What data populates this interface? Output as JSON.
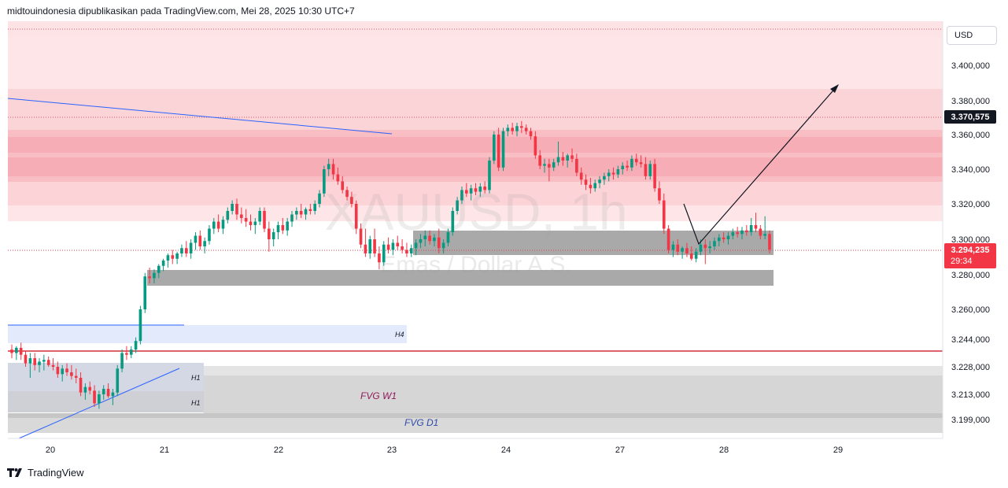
{
  "header": {
    "caption": "midtouindonesia dipublikasikan pada TradingView.com, Mei 28, 2025 10:30 UTC+7"
  },
  "footer": {
    "brand": "TradingView",
    "logo_icon": "tradingview-logo-icon"
  },
  "price_scale": {
    "currency": "USD",
    "current_price": "3.294,235",
    "countdown": "29:34",
    "marker_price": "3.370,575",
    "tick_values": [
      3400000,
      3380000,
      3360000,
      3340000,
      3320000,
      3300000,
      3280000,
      3260000,
      3244000,
      3228000,
      3213000,
      3199000
    ],
    "tick_labels": [
      "3.400,000",
      "3.380,000",
      "3.360,000",
      "3.340,000",
      "3.320,000",
      "3.300,000",
      "3.280,000",
      "3.260,000",
      "3.244,000",
      "3.228,000",
      "3.213,000",
      "3.199,000"
    ]
  },
  "time_scale": {
    "labels": [
      "20",
      "21",
      "22",
      "23",
      "24",
      "27",
      "28",
      "29"
    ]
  },
  "watermark": {
    "symbol": "XAUUSD, 1h",
    "description": "Emas / Dollar A.S."
  },
  "zone_labels": {
    "h4": "H4",
    "h1_top": "H1",
    "h1_bottom": "H1",
    "fvg_w1": "FVG W1",
    "fvg_d1": "FVG D1"
  },
  "colors": {
    "up": "#089981",
    "down": "#f23645",
    "price_marker": "#f23645",
    "pink_zone": "#fbd4d8",
    "gray_zone": "#8c8c8c",
    "blue_zone": "#dfe8fb",
    "fvg_label_w1": "#8e1a5a",
    "fvg_label_d1": "#2e4ba8"
  },
  "chart_data": {
    "type": "candlestick",
    "symbol": "XAUUSD",
    "timeframe": "1h",
    "ylim": [
      3190000,
      3420000
    ],
    "x_categories": [
      "20",
      "21",
      "22",
      "23",
      "24",
      "27",
      "28",
      "29"
    ],
    "candles": [
      [
        3238000,
        3241000,
        3233000,
        3236000
      ],
      [
        3236000,
        3240000,
        3232000,
        3239000
      ],
      [
        3239000,
        3242000,
        3232000,
        3235000
      ],
      [
        3235000,
        3237000,
        3228000,
        3230000
      ],
      [
        3230000,
        3236000,
        3222000,
        3233000
      ],
      [
        3233000,
        3236000,
        3226000,
        3229000
      ],
      [
        3229000,
        3233000,
        3225000,
        3231000
      ],
      [
        3231000,
        3235000,
        3226000,
        3232000
      ],
      [
        3232000,
        3234000,
        3228000,
        3229000
      ],
      [
        3229000,
        3233000,
        3226000,
        3228000
      ],
      [
        3228000,
        3231000,
        3222000,
        3224000
      ],
      [
        3224000,
        3229000,
        3220000,
        3227000
      ],
      [
        3227000,
        3230000,
        3223000,
        3225000
      ],
      [
        3225000,
        3229000,
        3221000,
        3223000
      ],
      [
        3223000,
        3227000,
        3219000,
        3222000
      ],
      [
        3222000,
        3225000,
        3212000,
        3214000
      ],
      [
        3214000,
        3219000,
        3210000,
        3217000
      ],
      [
        3217000,
        3220000,
        3213000,
        3215000
      ],
      [
        3215000,
        3218000,
        3206000,
        3208000
      ],
      [
        3208000,
        3215000,
        3205000,
        3213000
      ],
      [
        3213000,
        3218000,
        3210000,
        3216000
      ],
      [
        3216000,
        3219000,
        3211000,
        3212000
      ],
      [
        3212000,
        3216000,
        3207000,
        3214000
      ],
      [
        3214000,
        3229000,
        3212000,
        3227000
      ],
      [
        3227000,
        3238000,
        3225000,
        3236000
      ],
      [
        3236000,
        3240000,
        3232000,
        3235000
      ],
      [
        3235000,
        3240000,
        3233000,
        3238000
      ],
      [
        3238000,
        3245000,
        3236000,
        3243000
      ],
      [
        3243000,
        3262000,
        3241000,
        3260000
      ],
      [
        3260000,
        3281000,
        3258000,
        3279000
      ],
      [
        3279000,
        3284000,
        3275000,
        3278000
      ],
      [
        3278000,
        3283000,
        3275000,
        3281000
      ],
      [
        3281000,
        3286000,
        3278000,
        3285000
      ],
      [
        3285000,
        3289000,
        3282000,
        3288000
      ],
      [
        3288000,
        3292000,
        3284000,
        3291000
      ],
      [
        3291000,
        3294000,
        3286000,
        3289000
      ],
      [
        3289000,
        3293000,
        3286000,
        3292000
      ],
      [
        3292000,
        3297000,
        3290000,
        3295000
      ],
      [
        3295000,
        3299000,
        3290000,
        3292000
      ],
      [
        3292000,
        3300000,
        3289000,
        3298000
      ],
      [
        3298000,
        3304000,
        3294000,
        3302000
      ],
      [
        3302000,
        3305000,
        3294000,
        3296000
      ],
      [
        3296000,
        3301000,
        3292000,
        3299000
      ],
      [
        3299000,
        3308000,
        3297000,
        3306000
      ],
      [
        3306000,
        3312000,
        3303000,
        3310000
      ],
      [
        3310000,
        3314000,
        3304000,
        3306000
      ],
      [
        3306000,
        3313000,
        3303000,
        3311000
      ],
      [
        3311000,
        3318000,
        3309000,
        3316000
      ],
      [
        3316000,
        3322000,
        3314000,
        3320000
      ],
      [
        3320000,
        3323000,
        3311000,
        3314000
      ],
      [
        3314000,
        3318000,
        3309000,
        3312000
      ],
      [
        3312000,
        3317000,
        3307000,
        3310000
      ],
      [
        3310000,
        3314000,
        3305000,
        3308000
      ],
      [
        3308000,
        3312000,
        3303000,
        3310000
      ],
      [
        3310000,
        3318000,
        3308000,
        3316000
      ],
      [
        3316000,
        3318000,
        3304000,
        3306000
      ],
      [
        3306000,
        3310000,
        3293000,
        3300000
      ],
      [
        3300000,
        3306000,
        3296000,
        3304000
      ],
      [
        3304000,
        3310000,
        3300000,
        3308000
      ],
      [
        3308000,
        3312000,
        3303000,
        3305000
      ],
      [
        3305000,
        3312000,
        3302000,
        3310000
      ],
      [
        3310000,
        3316000,
        3307000,
        3314000
      ],
      [
        3314000,
        3318000,
        3311000,
        3316000
      ],
      [
        3316000,
        3320000,
        3312000,
        3314000
      ],
      [
        3314000,
        3318000,
        3311000,
        3317000
      ],
      [
        3317000,
        3320000,
        3314000,
        3316000
      ],
      [
        3316000,
        3322000,
        3314000,
        3320000
      ],
      [
        3320000,
        3328000,
        3318000,
        3326000
      ],
      [
        3326000,
        3342000,
        3324000,
        3340000
      ],
      [
        3340000,
        3346000,
        3336000,
        3343000
      ],
      [
        3343000,
        3346000,
        3334000,
        3337000
      ],
      [
        3337000,
        3341000,
        3331000,
        3333000
      ],
      [
        3333000,
        3336000,
        3326000,
        3328000
      ],
      [
        3328000,
        3330000,
        3322000,
        3324000
      ],
      [
        3324000,
        3327000,
        3318000,
        3320000
      ],
      [
        3320000,
        3322000,
        3303000,
        3306000
      ],
      [
        3306000,
        3309000,
        3295000,
        3297000
      ],
      [
        3297000,
        3306000,
        3290000,
        3292000
      ],
      [
        3292000,
        3302000,
        3289000,
        3300000
      ],
      [
        3300000,
        3306000,
        3290000,
        3292000
      ],
      [
        3292000,
        3296000,
        3283000,
        3287000
      ],
      [
        3287000,
        3299000,
        3285000,
        3297000
      ],
      [
        3297000,
        3301000,
        3292000,
        3294000
      ],
      [
        3294000,
        3300000,
        3291000,
        3298000
      ],
      [
        3298000,
        3302000,
        3294000,
        3296000
      ],
      [
        3296000,
        3300000,
        3292000,
        3294000
      ],
      [
        3294000,
        3298000,
        3290000,
        3292000
      ],
      [
        3292000,
        3297000,
        3290000,
        3295000
      ],
      [
        3295000,
        3300000,
        3291000,
        3298000
      ],
      [
        3298000,
        3303000,
        3295000,
        3300000
      ],
      [
        3300000,
        3305000,
        3296000,
        3302000
      ],
      [
        3302000,
        3305000,
        3297000,
        3299000
      ],
      [
        3299000,
        3303000,
        3296000,
        3301000
      ],
      [
        3301000,
        3306000,
        3292000,
        3295000
      ],
      [
        3295000,
        3300000,
        3292000,
        3298000
      ],
      [
        3298000,
        3306000,
        3296000,
        3304000
      ],
      [
        3304000,
        3318000,
        3302000,
        3316000
      ],
      [
        3316000,
        3324000,
        3314000,
        3322000
      ],
      [
        3322000,
        3330000,
        3320000,
        3328000
      ],
      [
        3328000,
        3332000,
        3324000,
        3326000
      ],
      [
        3326000,
        3331000,
        3322000,
        3329000
      ],
      [
        3329000,
        3332000,
        3325000,
        3327000
      ],
      [
        3327000,
        3332000,
        3324000,
        3330000
      ],
      [
        3330000,
        3333000,
        3326000,
        3328000
      ],
      [
        3328000,
        3347000,
        3326000,
        3345000
      ],
      [
        3345000,
        3362000,
        3343000,
        3360000
      ],
      [
        3360000,
        3364000,
        3339000,
        3341000
      ],
      [
        3341000,
        3364000,
        3339000,
        3362000
      ],
      [
        3362000,
        3366000,
        3359000,
        3364000
      ],
      [
        3364000,
        3367000,
        3360000,
        3362000
      ],
      [
        3362000,
        3367000,
        3359000,
        3365000
      ],
      [
        3365000,
        3368000,
        3361000,
        3364000
      ],
      [
        3364000,
        3366000,
        3360000,
        3362000
      ],
      [
        3362000,
        3364000,
        3357000,
        3359000
      ],
      [
        3359000,
        3362000,
        3346000,
        3348000
      ],
      [
        3348000,
        3351000,
        3340000,
        3342000
      ],
      [
        3342000,
        3346000,
        3338000,
        3343000
      ],
      [
        3343000,
        3346000,
        3333000,
        3341000
      ],
      [
        3341000,
        3346000,
        3339000,
        3344000
      ],
      [
        3344000,
        3356000,
        3342000,
        3347000
      ],
      [
        3347000,
        3350000,
        3342000,
        3345000
      ],
      [
        3345000,
        3349000,
        3341000,
        3348000
      ],
      [
        3348000,
        3352000,
        3344000,
        3346000
      ],
      [
        3346000,
        3349000,
        3336000,
        3338000
      ],
      [
        3338000,
        3341000,
        3331000,
        3334000
      ],
      [
        3334000,
        3337000,
        3328000,
        3331000
      ],
      [
        3331000,
        3335000,
        3326000,
        3329000
      ],
      [
        3329000,
        3334000,
        3327000,
        3332000
      ],
      [
        3332000,
        3336000,
        3329000,
        3334000
      ],
      [
        3334000,
        3338000,
        3331000,
        3336000
      ],
      [
        3336000,
        3340000,
        3333000,
        3338000
      ],
      [
        3338000,
        3341000,
        3334000,
        3337000
      ],
      [
        3337000,
        3342000,
        3335000,
        3340000
      ],
      [
        3340000,
        3344000,
        3337000,
        3342000
      ],
      [
        3342000,
        3345000,
        3339000,
        3341000
      ],
      [
        3341000,
        3348000,
        3339000,
        3346000
      ],
      [
        3346000,
        3349000,
        3342000,
        3344000
      ],
      [
        3344000,
        3348000,
        3341000,
        3343000
      ],
      [
        3343000,
        3347000,
        3334000,
        3336000
      ],
      [
        3336000,
        3345000,
        3334000,
        3343000
      ],
      [
        3343000,
        3346000,
        3327000,
        3329000
      ],
      [
        3329000,
        3333000,
        3320000,
        3322000
      ],
      [
        3322000,
        3326000,
        3303000,
        3306000
      ],
      [
        3306000,
        3308000,
        3292000,
        3294000
      ],
      [
        3294000,
        3299000,
        3290000,
        3297000
      ],
      [
        3297000,
        3300000,
        3291000,
        3293000
      ],
      [
        3293000,
        3296000,
        3289000,
        3295000
      ],
      [
        3295000,
        3298000,
        3290000,
        3292000
      ],
      [
        3292000,
        3296000,
        3288000,
        3289000
      ],
      [
        3289000,
        3295000,
        3287000,
        3293000
      ],
      [
        3293000,
        3300000,
        3291000,
        3297000
      ],
      [
        3297000,
        3300000,
        3286000,
        3295000
      ],
      [
        3295000,
        3299000,
        3292000,
        3296000
      ],
      [
        3296000,
        3301000,
        3294000,
        3299000
      ],
      [
        3299000,
        3303000,
        3296000,
        3301000
      ],
      [
        3301000,
        3304000,
        3298000,
        3300000
      ],
      [
        3300000,
        3304000,
        3297000,
        3302000
      ],
      [
        3302000,
        3306000,
        3300000,
        3304000
      ],
      [
        3304000,
        3307000,
        3301000,
        3303000
      ],
      [
        3303000,
        3307000,
        3300000,
        3305000
      ],
      [
        3305000,
        3308000,
        3302000,
        3304000
      ],
      [
        3304000,
        3312000,
        3302000,
        3308000
      ],
      [
        3308000,
        3315000,
        3304000,
        3306000
      ],
      [
        3306000,
        3308000,
        3300000,
        3302000
      ],
      [
        3302000,
        3313000,
        3300000,
        3303000
      ],
      [
        3303000,
        3305000,
        3292000,
        3294235
      ]
    ]
  }
}
